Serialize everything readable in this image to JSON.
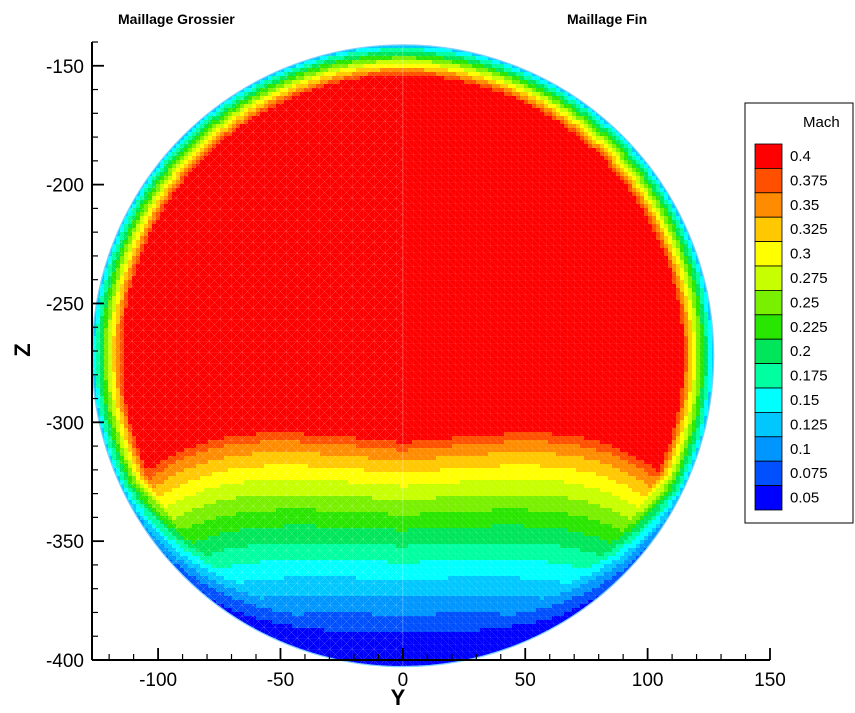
{
  "chart_data": {
    "type": "heatmap",
    "panel_titles": [
      "Maillage Grossier",
      "Maillage Fin"
    ],
    "xlabel": "Y",
    "ylabel": "Z",
    "xlim": [
      -127,
      150
    ],
    "ylim": [
      -400,
      -140
    ],
    "x_ticks": [
      -100,
      -50,
      0,
      50,
      100,
      150
    ],
    "y_ticks": [
      -150,
      -200,
      -250,
      -300,
      -350,
      -400
    ],
    "x_tick_labels": [
      "-100",
      "-50",
      "0",
      "50",
      "100",
      "150"
    ],
    "y_tick_labels": [
      "-150",
      "-200",
      "-250",
      "-300",
      "-350",
      "-400"
    ],
    "domain": {
      "shape": "circle",
      "center_y": 0,
      "center_z": -272,
      "radius": 127
    },
    "legend": {
      "title": "Mach",
      "position": "right",
      "levels": [
        "0.4",
        "0.375",
        "0.35",
        "0.325",
        "0.3",
        "0.275",
        "0.25",
        "0.225",
        "0.2",
        "0.175",
        "0.15",
        "0.125",
        "0.1",
        "0.075",
        "0.05"
      ],
      "colors": [
        "#ff0000",
        "#ff5000",
        "#ff8c00",
        "#ffc800",
        "#ffff00",
        "#c8ff00",
        "#78f000",
        "#28e600",
        "#00e65a",
        "#00ffa0",
        "#00ffff",
        "#00c8ff",
        "#0096ff",
        "#0050ff",
        "#0000ff"
      ]
    },
    "field_description_values": {
      "core_mach": 0.4,
      "bottom_min_mach": 0.05
    },
    "grid": false
  }
}
